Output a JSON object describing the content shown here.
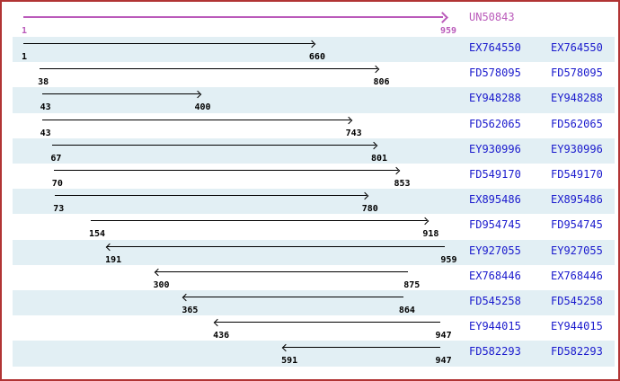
{
  "colors": {
    "frame_border": "#b13434",
    "row_band": "#e2eff4",
    "accession_text": "#1a1acd",
    "alignment_arrow": "#000000",
    "reference": "#ba5aba"
  },
  "reference": {
    "label": "UN50843",
    "start": 1,
    "end": 959
  },
  "chart_data": {
    "type": "bar",
    "subtype": "horizontal-interval-alignment",
    "title": "UN50843",
    "xlim": [
      1,
      959
    ],
    "grid": false,
    "legend": "none",
    "series": [
      {
        "name": "UN50843",
        "start": 1,
        "end": 959,
        "strand": "+",
        "role": "reference"
      },
      {
        "name": "EX764550",
        "start": 1,
        "end": 660,
        "strand": "+"
      },
      {
        "name": "FD578095",
        "start": 38,
        "end": 806,
        "strand": "+"
      },
      {
        "name": "EY948288",
        "start": 43,
        "end": 400,
        "strand": "+"
      },
      {
        "name": "FD562065",
        "start": 43,
        "end": 743,
        "strand": "+"
      },
      {
        "name": "EY930996",
        "start": 67,
        "end": 801,
        "strand": "+"
      },
      {
        "name": "FD549170",
        "start": 70,
        "end": 853,
        "strand": "+"
      },
      {
        "name": "EX895486",
        "start": 73,
        "end": 780,
        "strand": "+"
      },
      {
        "name": "FD954745",
        "start": 154,
        "end": 918,
        "strand": "+"
      },
      {
        "name": "EY927055",
        "start": 191,
        "end": 959,
        "strand": "-"
      },
      {
        "name": "EX768446",
        "start": 300,
        "end": 875,
        "strand": "-"
      },
      {
        "name": "FD545258",
        "start": 365,
        "end": 864,
        "strand": "-"
      },
      {
        "name": "EY944015",
        "start": 436,
        "end": 947,
        "strand": "-"
      },
      {
        "name": "FD582293",
        "start": 591,
        "end": 947,
        "strand": "-"
      }
    ]
  }
}
